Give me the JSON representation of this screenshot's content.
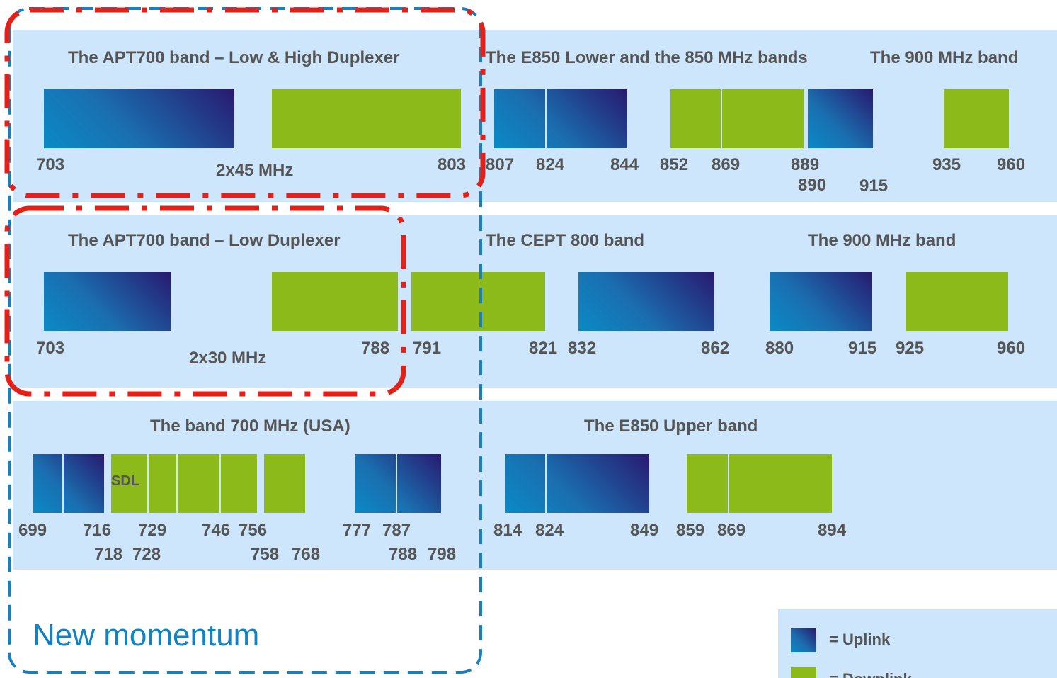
{
  "rows": [
    {
      "left_title": "The APT700 band – Low & High Duplexer",
      "mid_title": "The E850 Lower and the 850 MHz bands",
      "right_title": "The 900 MHz band",
      "labels": [
        "703",
        "2x45 MHz",
        "803",
        "807",
        "824",
        "844",
        "852",
        "869",
        "889",
        "890",
        "915",
        "935",
        "960"
      ]
    },
    {
      "left_title": "The APT700 band – Low Duplexer",
      "mid_title": "The CEPT 800 band",
      "right_title": "The 900 MHz band",
      "labels": [
        "703",
        "2x30 MHz",
        "788",
        "791",
        "821",
        "832",
        "862",
        "880",
        "915",
        "925",
        "960"
      ]
    },
    {
      "left_title": "The band 700 MHz (USA)",
      "mid_title": "The E850 Upper band",
      "sdl_label": "SDL",
      "labels": [
        "699",
        "716",
        "718",
        "728",
        "729",
        "746",
        "756",
        "758",
        "768",
        "777",
        "787",
        "788",
        "798",
        "814",
        "824",
        "849",
        "859",
        "869",
        "894"
      ]
    }
  ],
  "callout": "New momentum",
  "legend": {
    "uplink": "= Uplink",
    "downlink": "= Downlink"
  },
  "colors": {
    "uplink_start": "#0a8ac6",
    "uplink_end": "#281a70",
    "downlink": "#8cba1a",
    "panel": "#cde6fb",
    "red_highlight": "#e32119",
    "blue_highlight": "#1a7fc1"
  }
}
